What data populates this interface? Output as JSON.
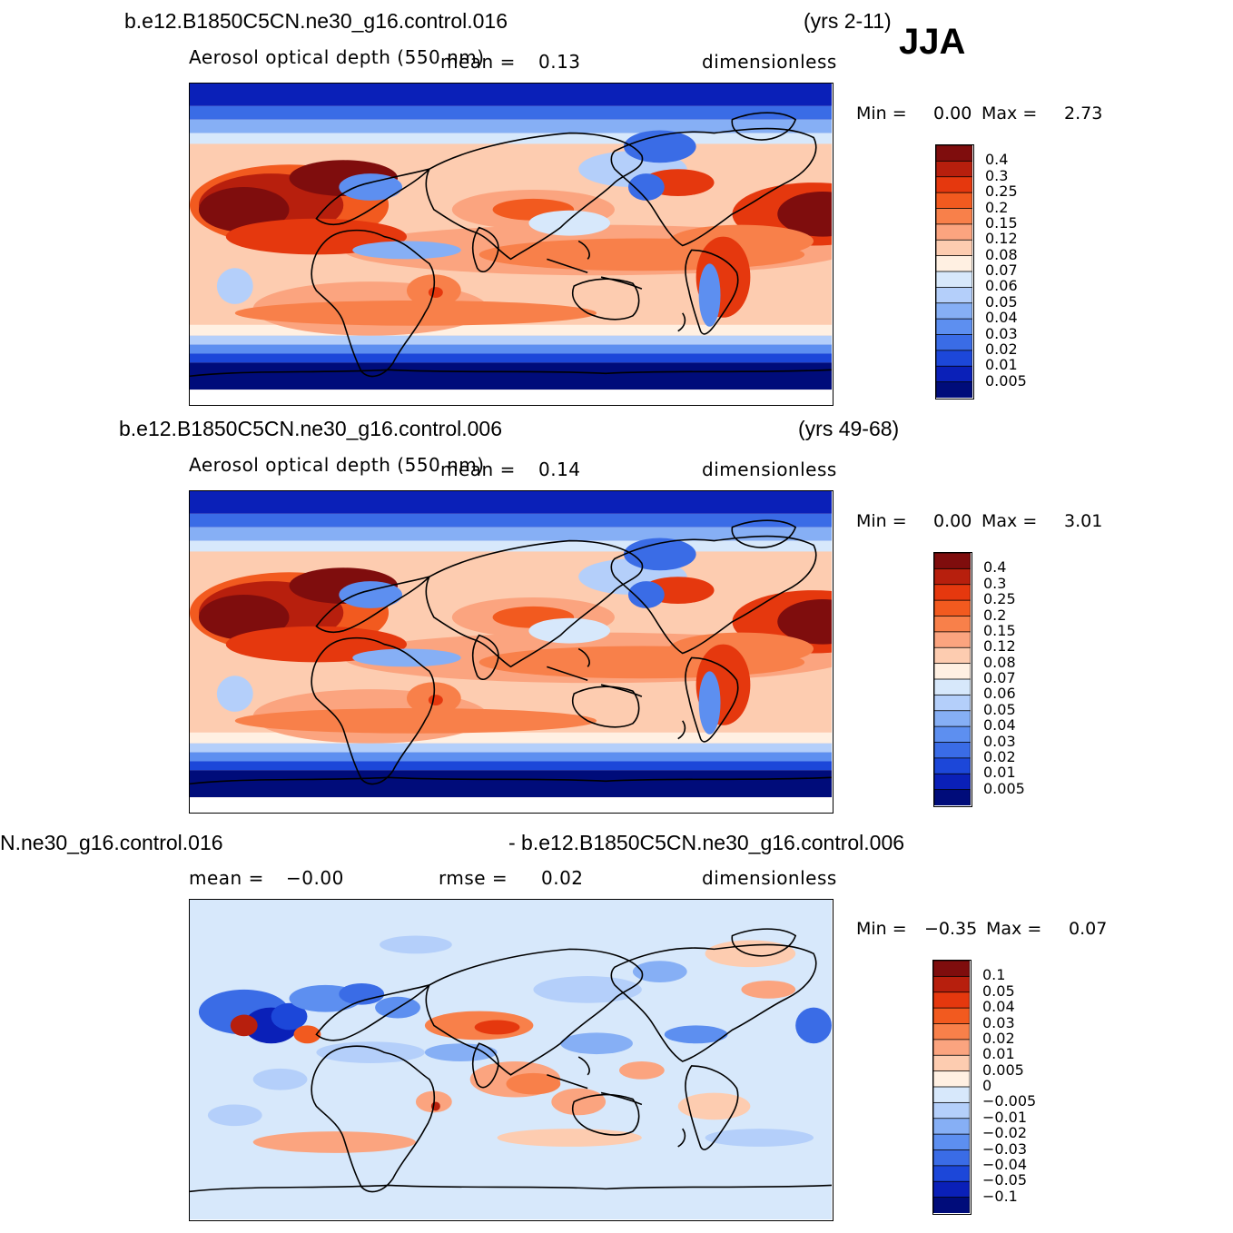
{
  "season": "JJA",
  "units": "dimensionless",
  "variable": "Aerosol optical depth (550 nm)",
  "panels": [
    {
      "case": "b.e12.B1850C5CN.ne30_g16.control.016",
      "years": "(yrs 2-11)",
      "variable": "Aerosol optical depth (550 nm)",
      "mean_label": "mean =",
      "mean_value": "0.13",
      "units": "dimensionless",
      "min_label": "Min =",
      "min_value": "0.00",
      "max_label": "Max =",
      "max_value": "2.73",
      "levels": [
        "0.4",
        "0.3",
        "0.25",
        "0.2",
        "0.15",
        "0.12",
        "0.08",
        "0.07",
        "0.06",
        "0.05",
        "0.04",
        "0.03",
        "0.02",
        "0.01",
        "0.005"
      ]
    },
    {
      "case": "b.e12.B1850C5CN.ne30_g16.control.006",
      "years": "(yrs 49-68)",
      "variable": "Aerosol optical depth (550 nm)",
      "mean_label": "mean =",
      "mean_value": "0.14",
      "units": "dimensionless",
      "min_label": "Min =",
      "min_value": "0.00",
      "max_label": "Max =",
      "max_value": "3.01",
      "levels": [
        "0.4",
        "0.3",
        "0.25",
        "0.2",
        "0.15",
        "0.12",
        "0.08",
        "0.07",
        "0.06",
        "0.05",
        "0.04",
        "0.03",
        "0.02",
        "0.01",
        "0.005"
      ]
    },
    {
      "case_left": "N.ne30_g16.control.016",
      "case_right": "- b.e12.B1850C5CN.ne30_g16.control.006",
      "mean_label": "mean =",
      "mean_value": "−0.00",
      "rmse_label": "rmse =",
      "rmse_value": "0.02",
      "units": "dimensionless",
      "min_label": "Min =",
      "min_value": "−0.35",
      "max_label": "Max =",
      "max_value": "0.07",
      "levels": [
        "0.1",
        "0.05",
        "0.04",
        "0.03",
        "0.02",
        "0.01",
        "0.005",
        "0",
        "−0.005",
        "−0.01",
        "−0.02",
        "−0.03",
        "−0.04",
        "−0.05",
        "−0.1"
      ]
    }
  ],
  "colors": {
    "aod_scale": [
      "#7f0d0d",
      "#b71f0d",
      "#e5380e",
      "#f25a1f",
      "#f8804a",
      "#fba47f",
      "#fdccb0",
      "#fff0e2",
      "#d7e8fb",
      "#b4cffa",
      "#86aff5",
      "#5d8ff0",
      "#3a6ce6",
      "#1c47d9",
      "#0a20b8",
      "#000c7a"
    ],
    "diff_scale": [
      "#7f0d0d",
      "#b71f0d",
      "#e5380e",
      "#f25a1f",
      "#f8804a",
      "#fba47f",
      "#fdccb0",
      "#fff0e2",
      "#d7e8fb",
      "#b4cffa",
      "#86aff5",
      "#5d8ff0",
      "#3a6ce6",
      "#1c47d9",
      "#0a20b8",
      "#000c7a"
    ]
  }
}
